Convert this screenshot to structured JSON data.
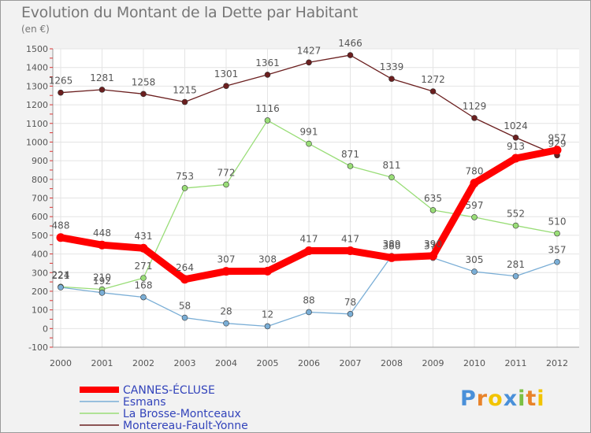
{
  "chart_data": {
    "type": "line",
    "title": "Evolution du Montant de la Dette par Habitant",
    "subtitle": "(en €)",
    "xlabel": "",
    "ylabel": "",
    "x": [
      "2000",
      "2001",
      "2002",
      "2003",
      "2004",
      "2005",
      "2006",
      "2007",
      "2008",
      "2009",
      "2010",
      "2011",
      "2012"
    ],
    "ylim": [
      -100,
      1500
    ],
    "yticks": [
      -100,
      0,
      100,
      200,
      300,
      400,
      500,
      600,
      700,
      800,
      900,
      1000,
      1100,
      1200,
      1300,
      1400,
      1500
    ],
    "grid": true,
    "legend": "bottom-left",
    "series": [
      {
        "name": "Montereau-Fault-Yonne",
        "color": "#6b1f1f",
        "values": [
          1265,
          1281,
          1258,
          1215,
          1301,
          1361,
          1427,
          1466,
          1339,
          1272,
          1129,
          1024,
          929
        ]
      },
      {
        "name": "La Brosse-Montceaux",
        "color": "#99dd77",
        "values": [
          224,
          210,
          271,
          753,
          772,
          1116,
          991,
          871,
          811,
          635,
          597,
          552,
          510
        ]
      },
      {
        "name": "Esmans",
        "color": "#7aaed6",
        "values": [
          221,
          192,
          168,
          58,
          28,
          12,
          88,
          78,
          389,
          379,
          305,
          281,
          357
        ]
      },
      {
        "name": "CANNES-ÉCLUSE",
        "color": "#ff0000",
        "values": [
          488,
          448,
          431,
          264,
          307,
          308,
          417,
          417,
          380,
          390,
          780,
          913,
          957
        ]
      }
    ]
  },
  "logo": {
    "text": "Proxiti",
    "letters": [
      "P",
      "r",
      "o",
      "x",
      "i",
      "t",
      "i"
    ],
    "colors": [
      "#4a90d9",
      "#e8832a",
      "#f2c400",
      "#4a90d9",
      "#7bc043",
      "#e8832a",
      "#f2c400"
    ]
  }
}
